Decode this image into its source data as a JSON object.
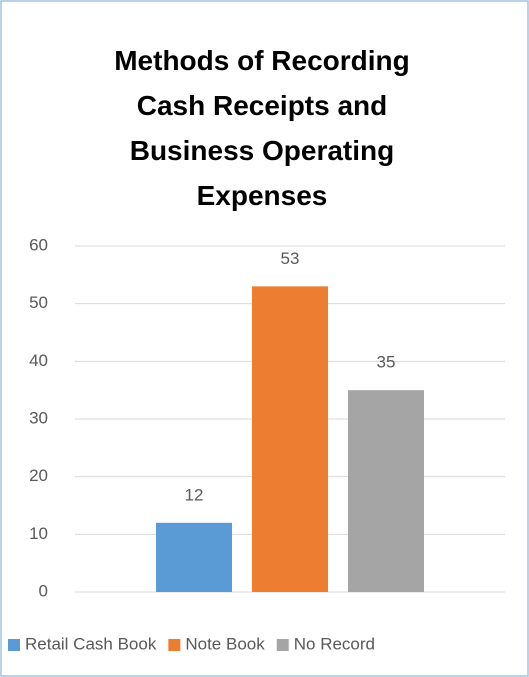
{
  "chart_data": {
    "type": "bar",
    "title": "Methods of Recording Cash Receipts and Business Operating Expenses",
    "categories": [
      null
    ],
    "series": [
      {
        "name": "Retail Cash Book",
        "color": "#5b9bd5",
        "values": [
          12
        ]
      },
      {
        "name": "Note Book",
        "color": "#ed7d31",
        "values": [
          53
        ]
      },
      {
        "name": "No Record",
        "color": "#a5a5a5",
        "values": [
          35
        ]
      }
    ],
    "ylim": [
      0,
      60
    ],
    "yticks": [
      0,
      10,
      20,
      30,
      40,
      50,
      60
    ],
    "grid": true,
    "legend": "bottom"
  }
}
